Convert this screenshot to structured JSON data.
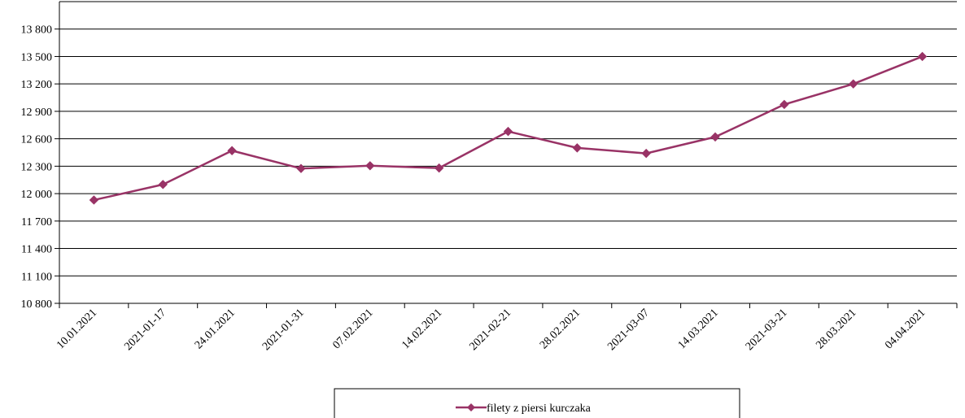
{
  "chart_data": {
    "type": "line",
    "categories": [
      "10.01.2021",
      "2021-01-17",
      "24.01.2021",
      "2021-01-31",
      "07.02.2021",
      "14.02.2021",
      "2021-02-21",
      "28.02.2021",
      "2021-03-07",
      "14.03.2021",
      "2021-03-21",
      "28.03.2021",
      "04.04.2021"
    ],
    "series": [
      {
        "name": "filety z piersi kurczaka",
        "color": "#993366",
        "values": [
          11930,
          12100,
          12470,
          12275,
          12305,
          12280,
          12680,
          12500,
          12440,
          12620,
          12975,
          13200,
          13500
        ]
      }
    ],
    "y_ticks": [
      "10 800",
      "11 100",
      "11 400",
      "11 700",
      "12 000",
      "12 300",
      "12 600",
      "12 900",
      "13 200",
      "13 500",
      "13 800"
    ],
    "ylim": [
      10800,
      14100
    ],
    "ytick_step": 300,
    "grid": "horizontal",
    "legend_position": "bottom-center",
    "marker": "diamond"
  }
}
